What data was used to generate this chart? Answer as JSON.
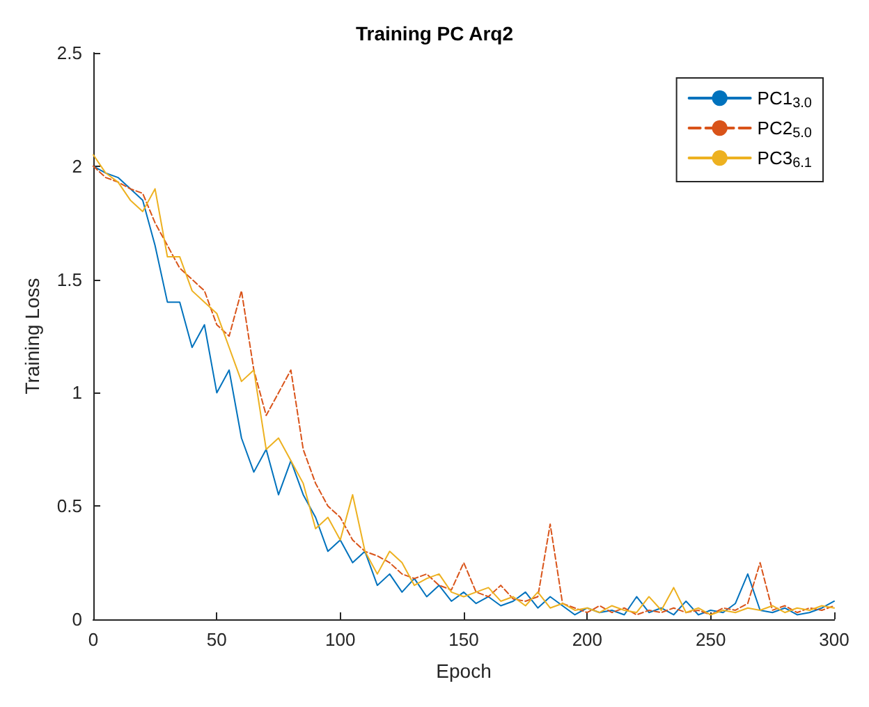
{
  "chart_data": {
    "type": "line",
    "title": "Training PC Arq2",
    "xlabel": "Epoch",
    "ylabel": "Training Loss",
    "x": [
      0,
      5,
      10,
      15,
      20,
      25,
      30,
      35,
      40,
      45,
      50,
      55,
      60,
      65,
      70,
      75,
      80,
      85,
      90,
      95,
      100,
      105,
      110,
      115,
      120,
      125,
      130,
      135,
      140,
      145,
      150,
      155,
      160,
      165,
      170,
      175,
      180,
      185,
      190,
      195,
      200,
      205,
      210,
      215,
      220,
      225,
      230,
      235,
      240,
      245,
      250,
      255,
      260,
      265,
      270,
      275,
      280,
      285,
      290,
      295,
      300
    ],
    "series": [
      {
        "name": "PC1$_{3.0}$",
        "color": "#0072bd",
        "line_style": "solid",
        "values": [
          2.0,
          1.97,
          1.95,
          1.9,
          1.85,
          1.65,
          1.4,
          1.4,
          1.2,
          1.3,
          1.0,
          1.1,
          0.8,
          0.65,
          0.75,
          0.55,
          0.7,
          0.55,
          0.45,
          0.3,
          0.35,
          0.25,
          0.3,
          0.15,
          0.2,
          0.12,
          0.18,
          0.1,
          0.15,
          0.08,
          0.12,
          0.07,
          0.1,
          0.06,
          0.08,
          0.12,
          0.05,
          0.1,
          0.06,
          0.02,
          0.05,
          0.03,
          0.04,
          0.02,
          0.1,
          0.03,
          0.05,
          0.02,
          0.08,
          0.02,
          0.04,
          0.03,
          0.07,
          0.2,
          0.04,
          0.03,
          0.05,
          0.02,
          0.03,
          0.05,
          0.08
        ]
      },
      {
        "name": "PC2$_{5.0}$",
        "color": "#d95319",
        "line_style": "dashed",
        "values": [
          2.0,
          1.95,
          1.93,
          1.9,
          1.88,
          1.75,
          1.65,
          1.55,
          1.5,
          1.45,
          1.3,
          1.25,
          1.45,
          1.1,
          0.9,
          1.0,
          1.1,
          0.75,
          0.6,
          0.5,
          0.45,
          0.35,
          0.3,
          0.28,
          0.25,
          0.2,
          0.18,
          0.2,
          0.15,
          0.13,
          0.25,
          0.12,
          0.1,
          0.15,
          0.09,
          0.08,
          0.1,
          0.42,
          0.07,
          0.05,
          0.03,
          0.06,
          0.03,
          0.05,
          0.02,
          0.04,
          0.03,
          0.05,
          0.03,
          0.04,
          0.02,
          0.05,
          0.04,
          0.07,
          0.25,
          0.04,
          0.06,
          0.03,
          0.05,
          0.04,
          0.06
        ]
      },
      {
        "name": "PC3$_{6.1}$",
        "color": "#edb120",
        "line_style": "solid",
        "values": [
          2.05,
          1.97,
          1.93,
          1.85,
          1.8,
          1.9,
          1.6,
          1.6,
          1.45,
          1.4,
          1.35,
          1.2,
          1.05,
          1.1,
          0.75,
          0.8,
          0.7,
          0.6,
          0.4,
          0.45,
          0.35,
          0.55,
          0.3,
          0.2,
          0.3,
          0.25,
          0.15,
          0.18,
          0.2,
          0.12,
          0.1,
          0.12,
          0.14,
          0.08,
          0.1,
          0.06,
          0.12,
          0.05,
          0.07,
          0.04,
          0.05,
          0.03,
          0.06,
          0.04,
          0.03,
          0.1,
          0.04,
          0.14,
          0.03,
          0.05,
          0.02,
          0.04,
          0.03,
          0.05,
          0.04,
          0.06,
          0.03,
          0.05,
          0.04,
          0.06,
          0.05
        ]
      }
    ],
    "xlim": [
      0,
      300
    ],
    "xticks": [
      0,
      50,
      100,
      150,
      200,
      250,
      300
    ],
    "ylim": [
      0,
      2.5
    ],
    "yticks": [
      0,
      0.5,
      1,
      1.5,
      2,
      2.5
    ],
    "grid": false,
    "legend": "top right",
    "marker": "none"
  }
}
